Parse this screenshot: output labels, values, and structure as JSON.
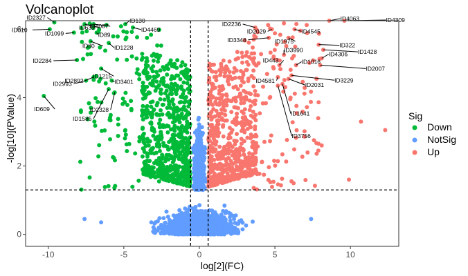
{
  "chart_data": {
    "type": "scatter",
    "title": "Volcanoplot",
    "xlabel": "log[2](FC)",
    "ylabel": "-log[10](PValue)",
    "xlim": [
      -11.5,
      13.2
    ],
    "ylim": [
      -0.35,
      6.25
    ],
    "xticks": [
      -10,
      -5,
      0,
      5,
      10
    ],
    "xtick_labels": [
      "-10",
      "-5",
      "0",
      "5",
      "10"
    ],
    "yticks": [
      0,
      2,
      4,
      6
    ],
    "ytick_labels": [
      "0",
      "2",
      "4",
      "6"
    ],
    "thresholds": {
      "fc": [
        -0.58,
        0.58
      ],
      "pvalue": 1.3
    },
    "grid": false,
    "legend": {
      "title": "Sig",
      "position": "right"
    },
    "series": [
      {
        "name": "Down",
        "color": "#00BA38"
      },
      {
        "name": "NotSig",
        "color": "#619CFF"
      },
      {
        "name": "Up",
        "color": "#F8766D"
      }
    ],
    "labeled_points": [
      {
        "id": "ID2327",
        "x": -9.6,
        "y": 6.2
      },
      {
        "id": "ID639",
        "x": -7.6,
        "y": 6.15
      },
      {
        "id": "ID4087",
        "x": -7.0,
        "y": 6.15
      },
      {
        "id": "ID130",
        "x": -4.9,
        "y": 6.15
      },
      {
        "id": "ID610",
        "x": -9.9,
        "y": 6.0
      },
      {
        "id": "ID1099",
        "x": -8.3,
        "y": 5.9
      },
      {
        "id": "ID89",
        "x": -6.8,
        "y": 5.9
      },
      {
        "id": "ID4469",
        "x": -4.4,
        "y": 6.05
      },
      {
        "id": "ID80",
        "x": -7.2,
        "y": 5.65
      },
      {
        "id": "ID1228",
        "x": -6.0,
        "y": 5.6
      },
      {
        "id": "ID2284",
        "x": -8.1,
        "y": 5.1
      },
      {
        "id": "ID1215",
        "x": -6.5,
        "y": 4.85
      },
      {
        "id": "ID3401",
        "x": -5.8,
        "y": 4.5
      },
      {
        "id": "ID2892",
        "x": -7.0,
        "y": 4.6
      },
      {
        "id": "ID2993",
        "x": -7.5,
        "y": 4.5
      },
      {
        "id": "ID2328",
        "x": -5.6,
        "y": 4.15
      },
      {
        "id": "ID609",
        "x": -10.3,
        "y": 4.05
      },
      {
        "id": "ID1585",
        "x": -6.0,
        "y": 4.25
      },
      {
        "id": "ID2236",
        "x": 3.7,
        "y": 6.05
      },
      {
        "id": "ID2029",
        "x": 4.8,
        "y": 6.0
      },
      {
        "id": "ID4545",
        "x": 6.3,
        "y": 6.0
      },
      {
        "id": "ID4063",
        "x": 8.6,
        "y": 6.25
      },
      {
        "id": "ID4309",
        "x": 9.6,
        "y": 6.25
      },
      {
        "id": "ID3348",
        "x": 4.6,
        "y": 5.75
      },
      {
        "id": "ID1975",
        "x": 5.9,
        "y": 5.75
      },
      {
        "id": "ID322",
        "x": 7.9,
        "y": 5.55
      },
      {
        "id": "ID1428",
        "x": 8.2,
        "y": 5.4
      },
      {
        "id": "ID3990",
        "x": 5.6,
        "y": 5.25
      },
      {
        "id": "ID4306",
        "x": 8.1,
        "y": 5.15
      },
      {
        "id": "ID443",
        "x": 5.3,
        "y": 4.95
      },
      {
        "id": "ID1016",
        "x": 6.4,
        "y": 4.95
      },
      {
        "id": "ID2007",
        "x": 8.0,
        "y": 4.95
      },
      {
        "id": "ID4581",
        "x": 5.2,
        "y": 4.6
      },
      {
        "id": "ID2031",
        "x": 5.9,
        "y": 4.55
      },
      {
        "id": "ID3229",
        "x": 6.1,
        "y": 4.65
      },
      {
        "id": "ID1641",
        "x": 5.5,
        "y": 4.4
      },
      {
        "id": "ID3756",
        "x": 5.2,
        "y": 4.35
      }
    ]
  }
}
